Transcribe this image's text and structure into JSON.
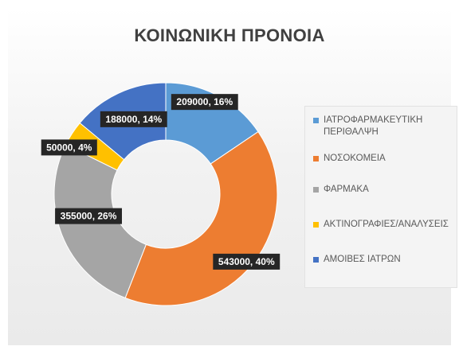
{
  "chart_data": {
    "type": "pie",
    "title": "ΚΟΙΝΩΝΙΚΗ ΠΡΟΝΟΙΑ",
    "donut": true,
    "legend_position": "right",
    "slices": [
      {
        "name": "ΙΑΤΡΟΦΑΡΜΑΚΕΥΤΙΚΗ ΠΕΡΙΘΑΛΨΗ",
        "value": 209000,
        "label": "209000, 16%",
        "color": "#5b9bd5"
      },
      {
        "name": "ΝΟΣΟΚΟΜΕΙΑ",
        "value": 543000,
        "label": "543000, 40%",
        "color": "#ed7d31"
      },
      {
        "name": "ΦΑΡΜΑΚΑ",
        "value": 355000,
        "label": "355000, 26%",
        "color": "#a5a5a5"
      },
      {
        "name": "ΑΚΤΙΝΟΓΡΑΦΙΕΣ/ΑΝΑΛΥΣΕΙΣ",
        "value": 50000,
        "label": "50000, 4%",
        "color": "#ffc000"
      },
      {
        "name": "ΑΜΟΙΒΕΣ ΙΑΤΡΩΝ",
        "value": 188000,
        "label": "188000, 14%",
        "color": "#4472c4"
      }
    ]
  }
}
